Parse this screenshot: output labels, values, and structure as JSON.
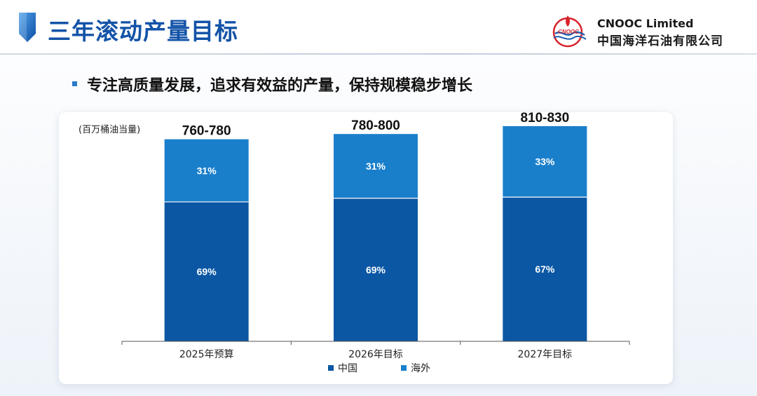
{
  "header": {
    "title": "三年滚动产量目标",
    "company_en": "CNOOC Limited",
    "company_cn": "中国海洋石油有限公司",
    "logo_text": "CNOOC"
  },
  "subtitle": "专注高质量发展，追求有效益的产量，保持规模稳步增长",
  "colors": {
    "china": "#0b57a4",
    "overseas": "#1a7fcb",
    "title_blue": "#1353a8",
    "logo_red": "#d8232a"
  },
  "chart_data": {
    "type": "bar",
    "stacked": true,
    "ylabel": "(百万桶油当量)",
    "categories": [
      "2025年预算",
      "2026年目标",
      "2027年目标"
    ],
    "totals": [
      770,
      790,
      820
    ],
    "total_labels": [
      "760-780",
      "780-800",
      "810-830"
    ],
    "series": [
      {
        "name": "中国",
        "percents": [
          69,
          69,
          67
        ],
        "labels": [
          "69%",
          "69%",
          "67%"
        ]
      },
      {
        "name": "海外",
        "percents": [
          31,
          31,
          33
        ],
        "labels": [
          "31%",
          "31%",
          "33%"
        ]
      }
    ],
    "legend_position": "bottom",
    "ylim": [
      0,
      900
    ],
    "grid": false
  }
}
